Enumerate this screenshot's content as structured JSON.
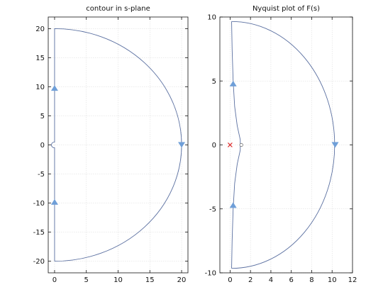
{
  "chart_data": [
    {
      "type": "line",
      "title": "contour in s-plane",
      "xlim": [
        -1,
        21
      ],
      "ylim": [
        -22,
        22
      ],
      "xticks": [
        0,
        5,
        10,
        15,
        20
      ],
      "yticks": [
        -20,
        -15,
        -10,
        -5,
        0,
        5,
        10,
        15,
        20
      ],
      "grid": true,
      "series": [
        {
          "kind": "d-contour",
          "radius": 20,
          "indent_radius": 0.5,
          "arrows": [
            {
              "x": 0,
              "y": 9.8,
              "dir": "up"
            },
            {
              "x": 0,
              "y": -9.8,
              "dir": "up"
            },
            {
              "x": 20,
              "y": 0,
              "dir": "down"
            }
          ]
        }
      ]
    },
    {
      "type": "line",
      "title": "Nyquist plot of F(s)",
      "xlim": [
        -1,
        12
      ],
      "ylim": [
        -10,
        10
      ],
      "xticks": [
        0,
        2,
        4,
        6,
        8,
        10,
        12
      ],
      "yticks": [
        -10,
        -5,
        0,
        5,
        10
      ],
      "grid": true,
      "series": [
        {
          "kind": "nyquist",
          "points": [
            [
              0.15,
              9.65
            ],
            [
              0.2,
              7.5
            ],
            [
              0.3,
              5.0
            ],
            [
              0.45,
              3.0
            ],
            [
              0.7,
              1.5
            ],
            [
              1.0,
              0.4
            ],
            [
              1.0,
              -0.4
            ],
            [
              0.7,
              -1.5
            ],
            [
              0.45,
              -3.0
            ],
            [
              0.3,
              -5.0
            ],
            [
              0.2,
              -7.5
            ],
            [
              0.15,
              -9.65
            ]
          ],
          "outer_center": [
            0.15,
            0
          ],
          "outer_radius": 10.1,
          "arrows": [
            {
              "x": 0.3,
              "y": 4.8,
              "dir": "up"
            },
            {
              "x": 0.3,
              "y": -4.7,
              "dir": "up"
            },
            {
              "x": 10.3,
              "y": 0,
              "dir": "down"
            }
          ],
          "critical_point": {
            "x": 0,
            "y": 0,
            "marker": "x"
          },
          "hollow_point": {
            "x": 1.1,
            "y": 0
          }
        }
      ]
    }
  ]
}
